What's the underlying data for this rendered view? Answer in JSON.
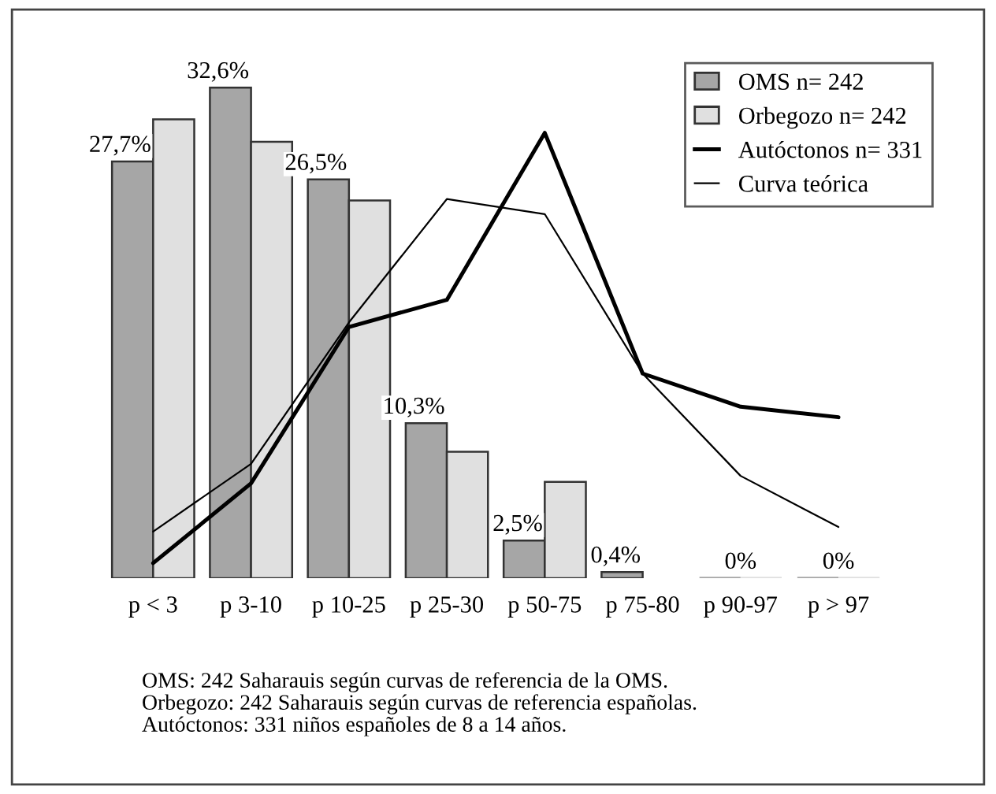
{
  "chart_data": {
    "type": "bar",
    "categories": [
      "p < 3",
      "p 3-10",
      "p 10-25",
      "p 25-30",
      "p 50-75",
      "p 75-80",
      "p 90-97",
      "p > 97"
    ],
    "series": [
      {
        "name": "OMS n= 242",
        "color": "#a6a6a6",
        "values": [
          27.7,
          32.6,
          26.5,
          10.3,
          2.5,
          0.4,
          0,
          0
        ],
        "value_labels": [
          "27,7%",
          "32,6%",
          "26,5%",
          "10,3%",
          "2,5%",
          "0,4%",
          "0%",
          "0%"
        ]
      },
      {
        "name": "Orbegozo n= 242",
        "color": "#e0e0e0",
        "values": [
          30.5,
          29.0,
          25.1,
          8.4,
          6.4,
          null,
          0,
          0
        ]
      },
      {
        "name": "Autóctonos n= 331",
        "type": "line",
        "color": "#000000",
        "values": [
          1.0,
          6.3,
          16.7,
          18.5,
          29.6,
          13.6,
          11.4,
          10.7
        ]
      },
      {
        "name": "Curva teórica",
        "type": "line",
        "color": "#000000",
        "values": [
          3.1,
          7.6,
          17.0,
          25.2,
          24.2,
          13.6,
          6.8,
          3.4
        ]
      }
    ],
    "legend": "top right",
    "annotations": [
      "OMS: 242 Saharauis según curvas de referencia de la OMS.",
      "Orbegozo: 242 Saharauis según curvas de referencia españolas.",
      "Autóctonos: 331 niños españoles de 8 a 14 años."
    ]
  }
}
